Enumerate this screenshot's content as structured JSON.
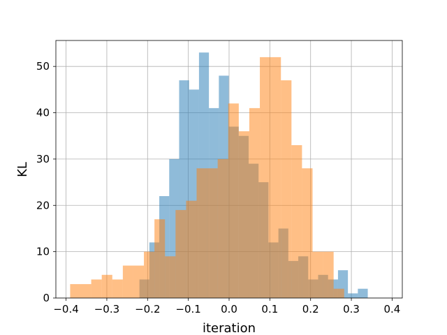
{
  "chart_data": {
    "type": "bar",
    "title": "",
    "xlabel": "iteration",
    "ylabel": "KL",
    "xlim": [
      -0.425,
      0.425
    ],
    "ylim": [
      0,
      55.6
    ],
    "grid": true,
    "legend": "none",
    "xticks": [
      -0.4,
      -0.3,
      -0.2,
      -0.1,
      0.0,
      0.1,
      0.2,
      0.3,
      0.4
    ],
    "xtick_labels": [
      "−0.4",
      "−0.3",
      "−0.2",
      "−0.1",
      "0.0",
      "0.1",
      "0.2",
      "0.3",
      "0.4"
    ],
    "yticks": [
      0,
      10,
      20,
      30,
      40,
      50
    ],
    "ytick_labels": [
      "0",
      "10",
      "20",
      "30",
      "40",
      "50"
    ],
    "series": [
      {
        "color": "#1f77b4",
        "opacity": 0.5,
        "bin_start": -0.22,
        "bin_width": 0.02436,
        "values": [
          4,
          12,
          22,
          30,
          47,
          45,
          53,
          41,
          48,
          37,
          35,
          29,
          25,
          12,
          15,
          8,
          9,
          4,
          5,
          4,
          6,
          1,
          2
        ]
      },
      {
        "color": "#ff7f0e",
        "opacity": 0.5,
        "bin_start": -0.39,
        "bin_width": 0.02586,
        "values": [
          3,
          3,
          4,
          5,
          4,
          7,
          7,
          10,
          17,
          9,
          19,
          21,
          28,
          28,
          30,
          42,
          36,
          41,
          52,
          52,
          47,
          33,
          28,
          10,
          10,
          2
        ]
      }
    ]
  }
}
